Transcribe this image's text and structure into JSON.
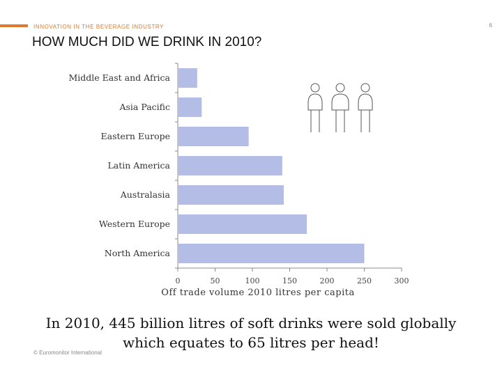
{
  "header": {
    "kicker": "INNOVATION IN THE BEVERAGE INDUSTRY",
    "page_number": "6",
    "title": "HOW MUCH DID WE DRINK IN 2010?",
    "accent_color": "#e07a2e"
  },
  "chart_data": {
    "type": "bar",
    "orientation": "horizontal",
    "categories": [
      "Middle East and Africa",
      "Asia Pacific",
      "Eastern Europe",
      "Latin America",
      "Australasia",
      "Western Europe",
      "North America"
    ],
    "values": [
      26,
      32,
      95,
      140,
      142,
      173,
      250
    ],
    "xlabel": "Off trade volume 2010 litres per capita",
    "xlim": [
      0,
      300
    ],
    "xticks": [
      "0",
      "50",
      "100",
      "150",
      "200",
      "250",
      "300"
    ],
    "bar_color": "#b4bde6",
    "grid": false
  },
  "illustration": {
    "icon": "people-icon"
  },
  "caption": "In 2010, 445 billion litres of soft drinks were sold globally which equates to 65 litres per head!",
  "footer": {
    "copyright": "© Euromonitor International"
  }
}
